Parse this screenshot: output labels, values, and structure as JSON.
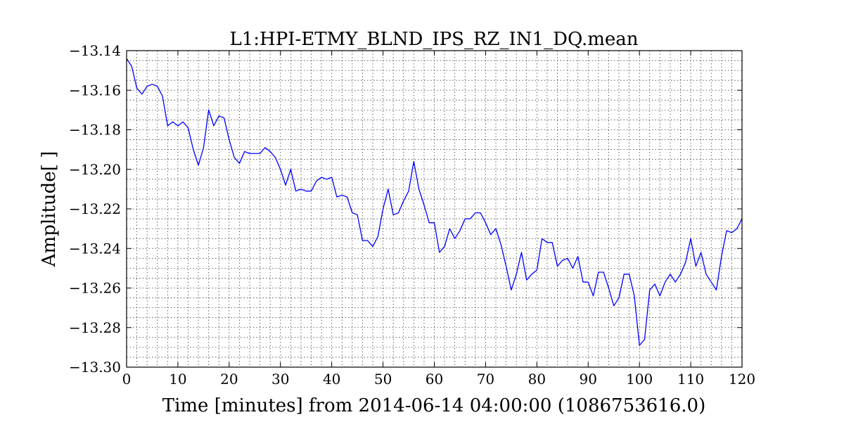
{
  "chart_data": {
    "type": "line",
    "title": "L1:HPI-ETMY_BLND_IPS_RZ_IN1_DQ.mean",
    "xlabel": "Time [minutes] from 2014-06-14 04:00:00 (1086753616.0)",
    "ylabel": "Amplitude[ ]",
    "xlim": [
      0,
      120
    ],
    "ylim": [
      -13.3,
      -13.14
    ],
    "grid": true,
    "xticks": [
      0,
      10,
      20,
      30,
      40,
      50,
      60,
      70,
      80,
      90,
      100,
      110,
      120
    ],
    "yticks": [
      -13.3,
      -13.28,
      -13.26,
      -13.24,
      -13.22,
      -13.2,
      -13.18,
      -13.16,
      -13.14
    ],
    "xtick_labels": [
      "0",
      "10",
      "20",
      "30",
      "40",
      "50",
      "60",
      "70",
      "80",
      "90",
      "100",
      "110",
      "120"
    ],
    "ytick_labels": [
      "−13.30",
      "−13.28",
      "−13.26",
      "−13.24",
      "−13.22",
      "−13.20",
      "−13.18",
      "−13.16",
      "−13.14"
    ],
    "series": [
      {
        "color": "#0000ff",
        "x": [
          0,
          1,
          2,
          3,
          4,
          5,
          6,
          7,
          8,
          9,
          10,
          11,
          12,
          13,
          14,
          15,
          16,
          17,
          18,
          19,
          20,
          21,
          22,
          23,
          24,
          25,
          26,
          27,
          28,
          29,
          30,
          31,
          32,
          33,
          34,
          35,
          36,
          37,
          38,
          39,
          40,
          41,
          42,
          43,
          44,
          45,
          46,
          47,
          48,
          49,
          50,
          51,
          52,
          53,
          54,
          55,
          56,
          57,
          58,
          59,
          60,
          61,
          62,
          63,
          64,
          65,
          66,
          67,
          68,
          69,
          70,
          71,
          72,
          73,
          74,
          75,
          76,
          77,
          78,
          79,
          80,
          81,
          82,
          83,
          84,
          85,
          86,
          87,
          88,
          89,
          90,
          91,
          92,
          93,
          94,
          95,
          96,
          97,
          98,
          99,
          100,
          101,
          102,
          103,
          104,
          105,
          106,
          107,
          108,
          109,
          110,
          111,
          112,
          113,
          114,
          115,
          116,
          117,
          118,
          119,
          120
        ],
        "values": [
          -13.144,
          -13.148,
          -13.159,
          -13.162,
          -13.158,
          -13.157,
          -13.158,
          -13.163,
          -13.178,
          -13.176,
          -13.178,
          -13.176,
          -13.179,
          -13.19,
          -13.198,
          -13.189,
          -13.17,
          -13.178,
          -13.173,
          -13.174,
          -13.185,
          -13.194,
          -13.197,
          -13.191,
          -13.192,
          -13.192,
          -13.192,
          -13.189,
          -13.191,
          -13.194,
          -13.2,
          -13.208,
          -13.2,
          -13.211,
          -13.21,
          -13.211,
          -13.211,
          -13.206,
          -13.204,
          -13.205,
          -13.204,
          -13.214,
          -13.213,
          -13.214,
          -13.222,
          -13.223,
          -13.236,
          -13.236,
          -13.239,
          -13.234,
          -13.22,
          -13.21,
          -13.223,
          -13.222,
          -13.216,
          -13.211,
          -13.196,
          -13.21,
          -13.218,
          -13.227,
          -13.227,
          -13.242,
          -13.239,
          -13.23,
          -13.235,
          -13.231,
          -13.225,
          -13.225,
          -13.222,
          -13.222,
          -13.227,
          -13.233,
          -13.23,
          -13.238,
          -13.249,
          -13.261,
          -13.253,
          -13.242,
          -13.256,
          -13.253,
          -13.251,
          -13.235,
          -13.237,
          -13.237,
          -13.249,
          -13.246,
          -13.245,
          -13.25,
          -13.244,
          -13.257,
          -13.257,
          -13.264,
          -13.252,
          -13.252,
          -13.26,
          -13.269,
          -13.265,
          -13.253,
          -13.253,
          -13.264,
          -13.289,
          -13.286,
          -13.261,
          -13.258,
          -13.264,
          -13.257,
          -13.253,
          -13.257,
          -13.253,
          -13.247,
          -13.235,
          -13.249,
          -13.242,
          -13.253,
          -13.257,
          -13.261,
          -13.244,
          -13.231,
          -13.232,
          -13.23,
          -13.225
        ]
      }
    ]
  }
}
